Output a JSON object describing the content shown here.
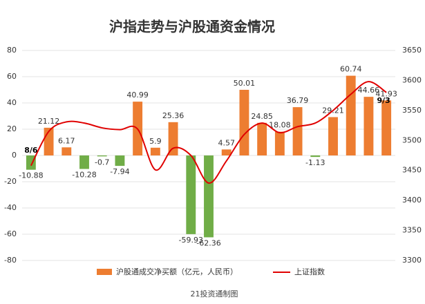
{
  "chart_data": {
    "type": "bar-line",
    "title": "沪指走势与沪股通资金情况",
    "footer": "21投资通制图",
    "categories": [
      "8/6",
      null,
      null,
      null,
      null,
      null,
      null,
      null,
      null,
      null,
      null,
      null,
      null,
      null,
      null,
      null,
      null,
      null,
      null,
      null,
      "9/3"
    ],
    "series": [
      {
        "name": "沪股通成交净买额（亿元，人民币）",
        "type": "bar",
        "color": "#ED7D31",
        "negative_color": "#70AD47",
        "values": [
          -10.88,
          21.12,
          6.17,
          -10.28,
          -0.7,
          -7.94,
          40.99,
          5.9,
          25.36,
          -59.93,
          -62.36,
          4.57,
          50.01,
          24.85,
          18.08,
          36.79,
          -1.13,
          29.21,
          60.74,
          44.66,
          41.93
        ]
      },
      {
        "name": "上证指数",
        "type": "line",
        "axis": "y2",
        "color": "#E00000",
        "values": [
          3458,
          3515,
          3531,
          3529,
          3521,
          3518,
          3519,
          3451,
          3487,
          3475,
          3429,
          3466,
          3510,
          3529,
          3513,
          3523,
          3529,
          3550,
          3577,
          3598,
          3580
        ]
      }
    ],
    "ylim": [
      -80,
      80
    ],
    "yticks": [
      -80,
      -60,
      -40,
      -20,
      0,
      20,
      40,
      60,
      80
    ],
    "y2lim": [
      3300,
      3650
    ],
    "y2ticks": [
      3300,
      3350,
      3400,
      3450,
      3500,
      3550,
      3600,
      3650
    ],
    "grid": true,
    "legend": "bottom"
  }
}
